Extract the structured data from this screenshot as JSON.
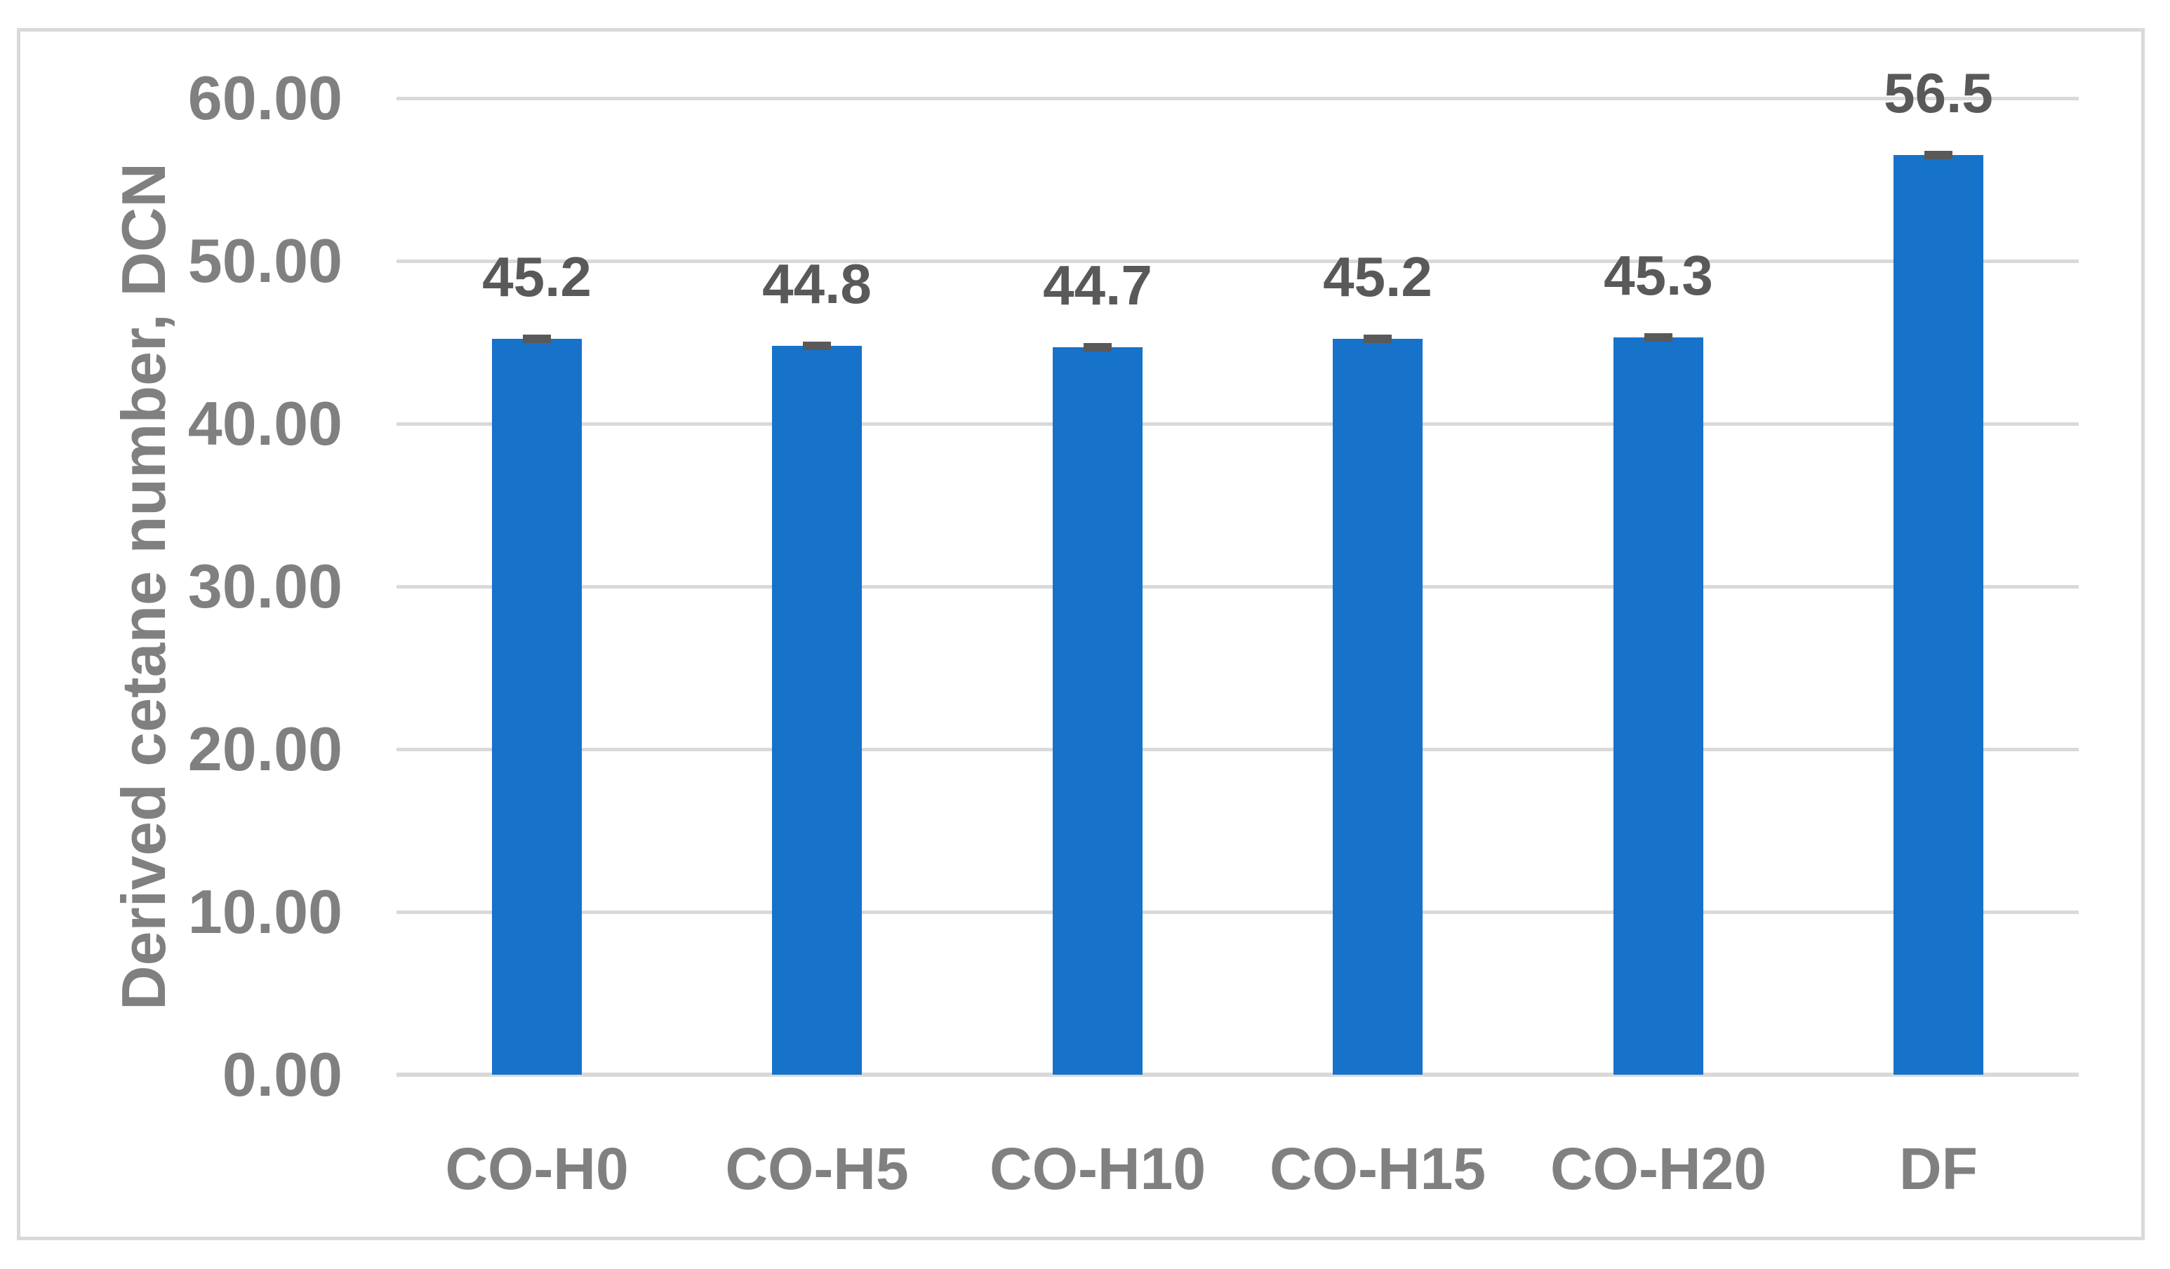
{
  "chart_data": {
    "type": "bar",
    "title": "",
    "categories": [
      "CO-H0",
      "CO-H5",
      "CO-H10",
      "CO-H15",
      "CO-H20",
      "DF"
    ],
    "values": [
      45.2,
      44.8,
      44.7,
      45.2,
      45.3,
      56.5
    ],
    "data_labels": [
      "45.2",
      "44.8",
      "44.7",
      "45.2",
      "45.3",
      "56.5"
    ],
    "has_error_bars": true,
    "xlabel": "",
    "ylabel": "Derived cetane number, DCN",
    "ylim": [
      0,
      60
    ],
    "ytick_step": 10,
    "yticks": [
      "60.00",
      "50.00",
      "40.00",
      "30.00",
      "20.00",
      "10.00",
      "0.00"
    ],
    "grid": true,
    "legend": false
  },
  "colors": {
    "bar_fill": "#1772CA",
    "error_cap": "#595959",
    "data_label": "#595959",
    "axis_text": "#808080",
    "gridline": "#D9D9D9",
    "frame_border": "#D9D9D9",
    "background": "#FFFFFF"
  }
}
